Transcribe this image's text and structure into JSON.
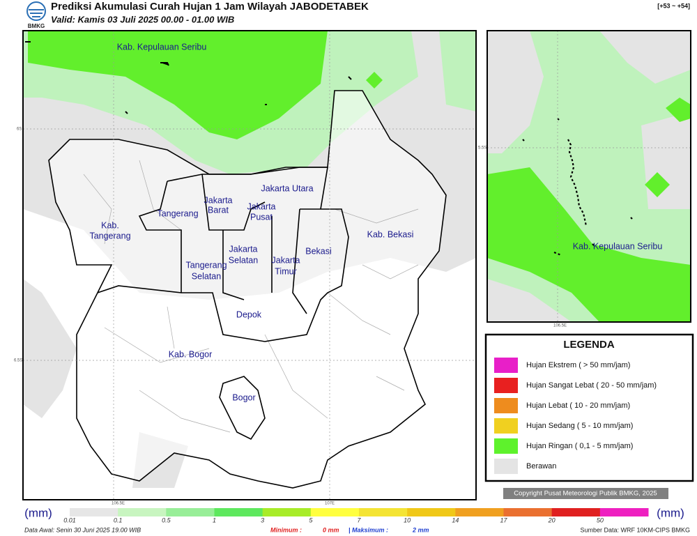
{
  "header": {
    "title": "Prediksi Akumulasi Curah Hujan 1 Jam Wilayah JABODETABEK",
    "valid": "Valid: Kamis 03 Juli 2025 00.00 - 01.00 WIB",
    "range": "[+53 ~ +54]",
    "logo": "BMKG"
  },
  "map": {
    "labels": [
      "Kab. Kepulauan Seribu",
      "Jakarta Utara",
      "Jakarta",
      "Barat",
      "Jakarta",
      "Pusat",
      "Tangerang",
      "Kab.",
      "Tangerang",
      "Kab. Bekasi",
      "Bekasi",
      "Jakarta",
      "Selatan",
      "Jakarta",
      "Timur",
      "Tangerang",
      "Selatan",
      "Depok",
      "Kab. Bogor",
      "Bogor"
    ],
    "axis": [
      "6S",
      "6.5S",
      "106.5E",
      "107E"
    ]
  },
  "inset": {
    "label": "Kab. Kepulauan Seribu",
    "axis": [
      "5.5S",
      "106.5E"
    ]
  },
  "legend": {
    "title": "LEGENDA",
    "items": [
      {
        "label": "Hujan Ekstrem ( > 50 mm/jam)",
        "color": "#e81fc8"
      },
      {
        "label": "Hujan Sangat Lebat ( 20 - 50 mm/jam)",
        "color": "#e82020"
      },
      {
        "label": "Hujan Lebat ( 10 - 20 mm/jam)",
        "color": "#ee8c1e"
      },
      {
        "label": "Hujan Sedang ( 5 - 10 mm/jam)",
        "color": "#f0d020"
      },
      {
        "label": "Hujan Ringan ( 0,1 - 5 mm/jam)",
        "color": "#5ef22c"
      },
      {
        "label": "Berawan",
        "color": "#e4e4e4"
      }
    ]
  },
  "copyright": "Copyright Pusat Meteorologi Publik BMKG, 2025",
  "colorbar": {
    "unit": "(mm)",
    "labels": [
      "0.01",
      "0.1",
      "0.5",
      "1",
      "3",
      "5",
      "7",
      "10",
      "14",
      "17",
      "20",
      "50"
    ],
    "colors": [
      "#e6e6e6",
      "#c8f5c0",
      "#98ee98",
      "#5ee85e",
      "#a8ec28",
      "#ffff40",
      "#f4e434",
      "#f0c818",
      "#f0a020",
      "#ea7030",
      "#e02020",
      "#ee20c0"
    ]
  },
  "footer": {
    "data_awal": "Data Awal: Senin 30 Juni 2025 19.00 WIB",
    "min_label": "Minimum :",
    "min_value": "0 mm",
    "max_label": "| Maksimum :",
    "max_value": "2 mm",
    "source": "Sumber Data: WRF 10KM-CIPS BMKG"
  }
}
